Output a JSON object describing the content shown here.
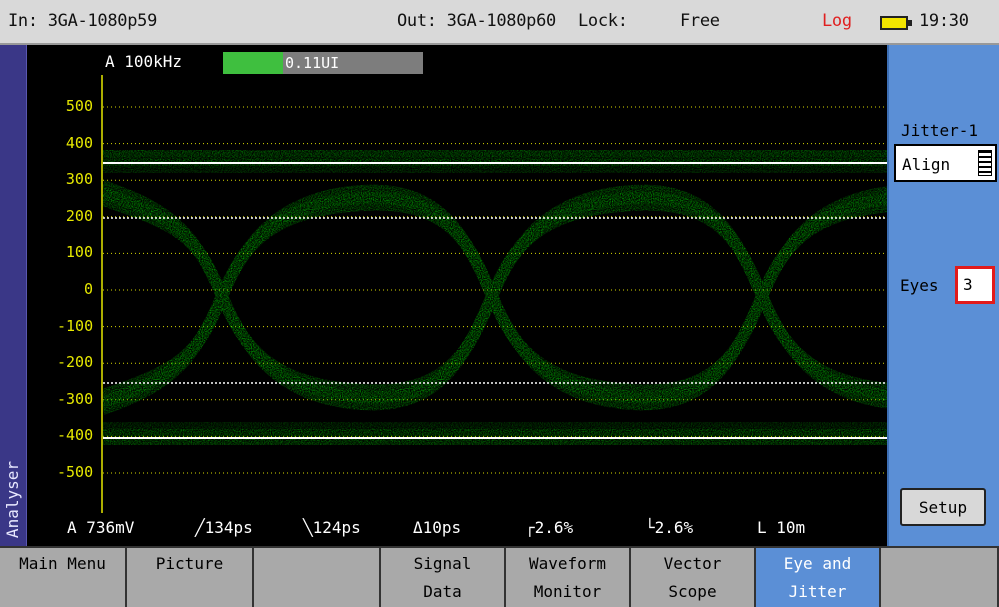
{
  "status": {
    "input": "In: 3GA-1080p59",
    "output": "Out: 3GA-1080p60",
    "lock_label": "Lock:",
    "lock_value": "Free",
    "log": "Log",
    "time": "19:30"
  },
  "side_tab": "Analyser",
  "jitter_header": {
    "channel_freq": "A 100kHz",
    "value": "0.11UI",
    "fill_fraction": 0.3
  },
  "y_axis_ticks": [
    "500",
    "400",
    "300",
    "200",
    "100",
    "0",
    "-100",
    "-200",
    "-300",
    "-400",
    "-500"
  ],
  "measurements": [
    "A 736mV",
    "╱134ps",
    "╲124ps",
    "Δ10ps",
    "┌2.6%",
    "└2.6%",
    "L 10m"
  ],
  "right_panel": {
    "jitter_title": "Jitter-1",
    "align_value": "Align",
    "eyes_label": "Eyes",
    "eyes_value": "3",
    "setup_label": "Setup"
  },
  "menu": [
    {
      "label": "Main Menu"
    },
    {
      "label": "Picture"
    },
    {
      "label": ""
    },
    {
      "label": "Signal\nData"
    },
    {
      "label": "Waveform\nMonitor"
    },
    {
      "label": "Vector\nScope"
    },
    {
      "label": "Eye and\nJitter",
      "active": true
    },
    {
      "label": ""
    }
  ],
  "colors": {
    "trace": "#2fd02f",
    "axis": "#e6e800",
    "accent": "#5b8fd6",
    "alert": "#e21b1b"
  }
}
